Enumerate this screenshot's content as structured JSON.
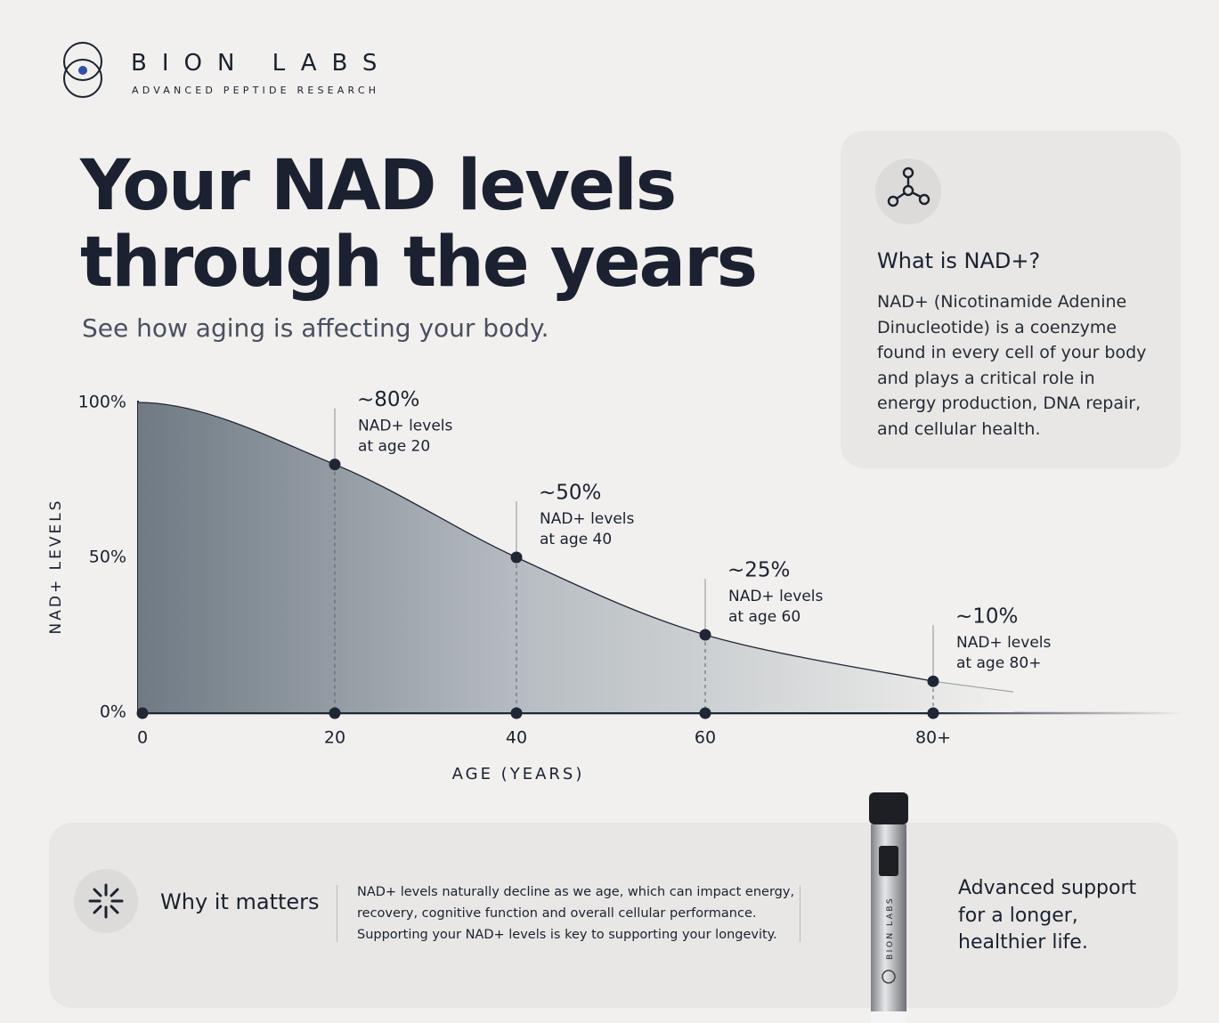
{
  "brand": {
    "name": "BION LABS",
    "tagline": "ADVANCED PEPTIDE RESEARCH"
  },
  "header": {
    "title": [
      "Your NAD levels",
      "through the years"
    ],
    "subtitle": "See how aging is affecting your body."
  },
  "info_card": {
    "title": "What is NAD+?",
    "text": "NAD+ (Nicotinamide Adenine Dinucleotide) is a coenzyme found in every cell of your body and plays a critical role in energy production, DNA repair, and cellular health."
  },
  "chart_data": {
    "type": "area",
    "y_label": "NAD+ LEVELS",
    "x_label": "AGE (YEARS)",
    "categories": [
      "0",
      "20",
      "40",
      "60",
      "80+"
    ],
    "values": [
      100,
      80,
      50,
      25,
      10
    ],
    "value_labels": [
      null,
      "~80%",
      "~50%",
      "~25%",
      "~10%"
    ],
    "annotations": [
      null,
      [
        "NAD+ levels",
        "at age 20"
      ],
      [
        "NAD+ levels",
        "at age 40"
      ],
      [
        "NAD+ levels",
        "at age 60"
      ],
      [
        "NAD+ levels",
        "at age 80+"
      ]
    ],
    "ylim": [
      0,
      100
    ],
    "yticks": [
      {
        "value": 0,
        "label": "0%"
      },
      {
        "value": 50,
        "label": "50%"
      },
      {
        "value": 100,
        "label": "100%"
      }
    ],
    "color": "#1f2636"
  },
  "footer": {
    "title": "Why it matters",
    "text": [
      "NAD+ levels naturally decline as we age, which can impact energy,",
      "recovery, cognitive function and overall cellular performance.",
      "Supporting your NAD+ levels is key to supporting your longevity."
    ],
    "tagline": [
      "Advanced support",
      "for a longer,",
      "healthier life."
    ],
    "pen_label": "BION LABS"
  }
}
